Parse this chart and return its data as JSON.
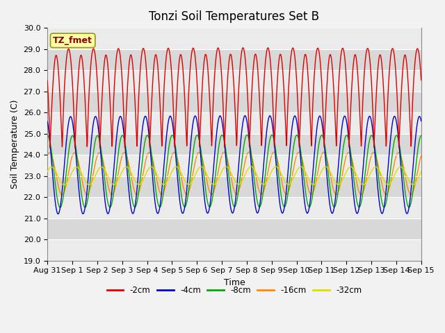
{
  "title": "Tonzi Soil Temperatures Set B",
  "xlabel": "Time",
  "ylabel": "Soil Temperature (C)",
  "annotation": "TZ_fmet",
  "ylim": [
    19.0,
    30.0
  ],
  "yticks": [
    19.0,
    20.0,
    21.0,
    22.0,
    23.0,
    24.0,
    25.0,
    26.0,
    27.0,
    28.0,
    29.0,
    30.0
  ],
  "series_colors": [
    "#DD0000",
    "#0000CC",
    "#00AA00",
    "#FF8800",
    "#DDDD00"
  ],
  "legend_labels": [
    "-2cm",
    "-4cm",
    "-8cm",
    "-16cm",
    "-32cm"
  ],
  "xtick_labels": [
    "Aug 31",
    "Sep 1",
    "Sep 2",
    "Sep 3",
    "Sep 4",
    "Sep 5",
    "Sep 6",
    "Sep 7",
    "Sep 8",
    "Sep 9",
    "Sep 10",
    "Sep 11",
    "Sep 12",
    "Sep 13",
    "Sep 14",
    "Sep 15"
  ],
  "plot_bg": "#E0E0E0",
  "stripe_light": "#EBEBEB",
  "stripe_dark": "#D8D8D8",
  "grid_color": "#FFFFFF",
  "fig_bg": "#F2F2F2",
  "title_fontsize": 12,
  "axis_fontsize": 9,
  "tick_fontsize": 8,
  "linewidth": 1.0
}
